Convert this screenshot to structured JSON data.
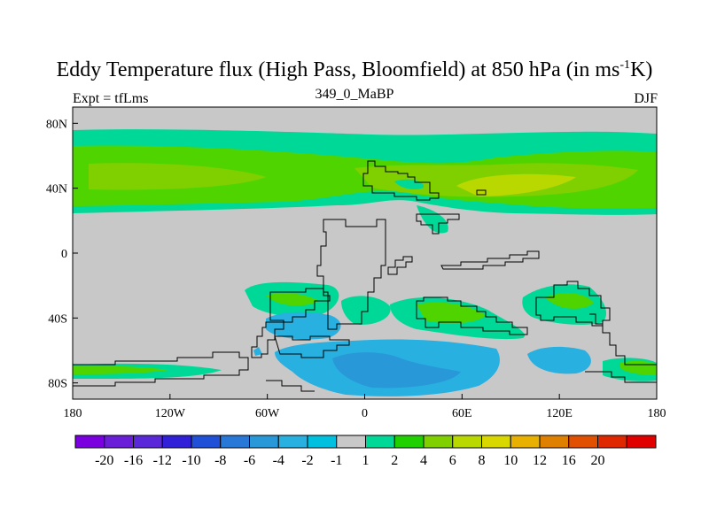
{
  "title_main": "Eddy Temperature flux (High Pass, Bloomfield) at 850 hPa (in ms",
  "title_sup": "-1",
  "title_tail": "K)",
  "subtitle": "349_0_MaBP",
  "left_label": "Expt = tfLms",
  "right_label": "DJF",
  "x_ticks": [
    "180",
    "120W",
    "60W",
    "0",
    "60E",
    "120E",
    "180"
  ],
  "y_ticks": [
    "80N",
    "40N",
    "0",
    "40S",
    "80S"
  ],
  "colorbar": {
    "colors": [
      "#7a00e0",
      "#6a1ed8",
      "#5a28d8",
      "#3020d8",
      "#2050d8",
      "#2878d8",
      "#2898d8",
      "#28b0e0",
      "#00c0e0",
      "#c8c8c8",
      "#00d898",
      "#20d000",
      "#80d000",
      "#b8d800",
      "#d8d800",
      "#e8b000",
      "#e08000",
      "#e05000",
      "#e02800",
      "#e00000"
    ],
    "labels": [
      "-20",
      "-16",
      "-12",
      "-10",
      "-8",
      "-6",
      "-4",
      "-2",
      "-1",
      "1",
      "2",
      "4",
      "6",
      "8",
      "10",
      "12",
      "16",
      "20"
    ]
  },
  "chart_data": {
    "type": "heatmap",
    "title": "Eddy Temperature flux (High Pass, Bloomfield) at 850 hPa (in ms-1K)",
    "subtitle": "349_0_MaBP",
    "experiment": "Expt = tfLms",
    "season": "DJF",
    "x_range": [
      -180,
      180
    ],
    "y_range": [
      -90,
      90
    ],
    "xlabel": "",
    "ylabel": "",
    "levels": [
      -20,
      -16,
      -12,
      -10,
      -8,
      -6,
      -4,
      -2,
      -1,
      1,
      2,
      4,
      6,
      8,
      10,
      12,
      16,
      20
    ]
  }
}
